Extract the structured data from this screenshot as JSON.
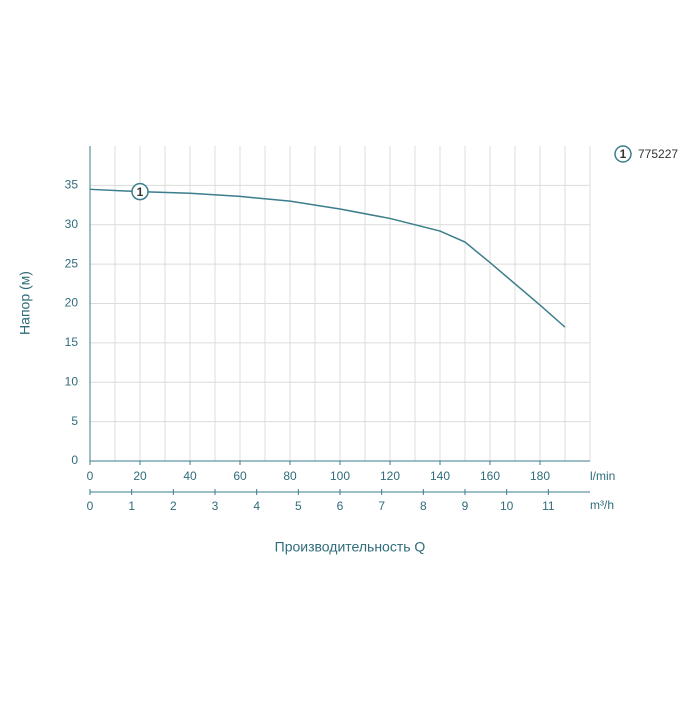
{
  "chart_data": {
    "type": "line",
    "ylabel": "Напор (м)",
    "xlabel": "Производительность Q",
    "xunit": "l/min",
    "x2unit": "m³/h",
    "x": [
      0,
      20,
      40,
      60,
      80,
      100,
      120,
      140,
      150,
      160,
      180,
      190
    ],
    "series": [
      {
        "name": "775227",
        "label": "1",
        "color": "#3b7d8c",
        "values": [
          34.5,
          34.2,
          34.0,
          33.6,
          33.0,
          32.0,
          30.8,
          29.2,
          27.8,
          25.2,
          19.8,
          17.0
        ],
        "label_at": 1
      }
    ],
    "xlim": [
      0,
      200
    ],
    "xticks": [
      0,
      20,
      40,
      60,
      80,
      100,
      120,
      140,
      160,
      180
    ],
    "xgrid": [
      10,
      20,
      30,
      40,
      50,
      60,
      70,
      80,
      90,
      100,
      110,
      120,
      130,
      140,
      150,
      160,
      170,
      180,
      190,
      200
    ],
    "x2lim": [
      0,
      12
    ],
    "x2ticks": [
      0,
      1,
      2,
      3,
      4,
      5,
      6,
      7,
      8,
      9,
      10,
      11
    ],
    "ylim": [
      0,
      40
    ],
    "yticks": [
      0,
      5,
      10,
      15,
      20,
      25,
      30,
      35
    ],
    "grid": true,
    "legend": "top-right"
  }
}
